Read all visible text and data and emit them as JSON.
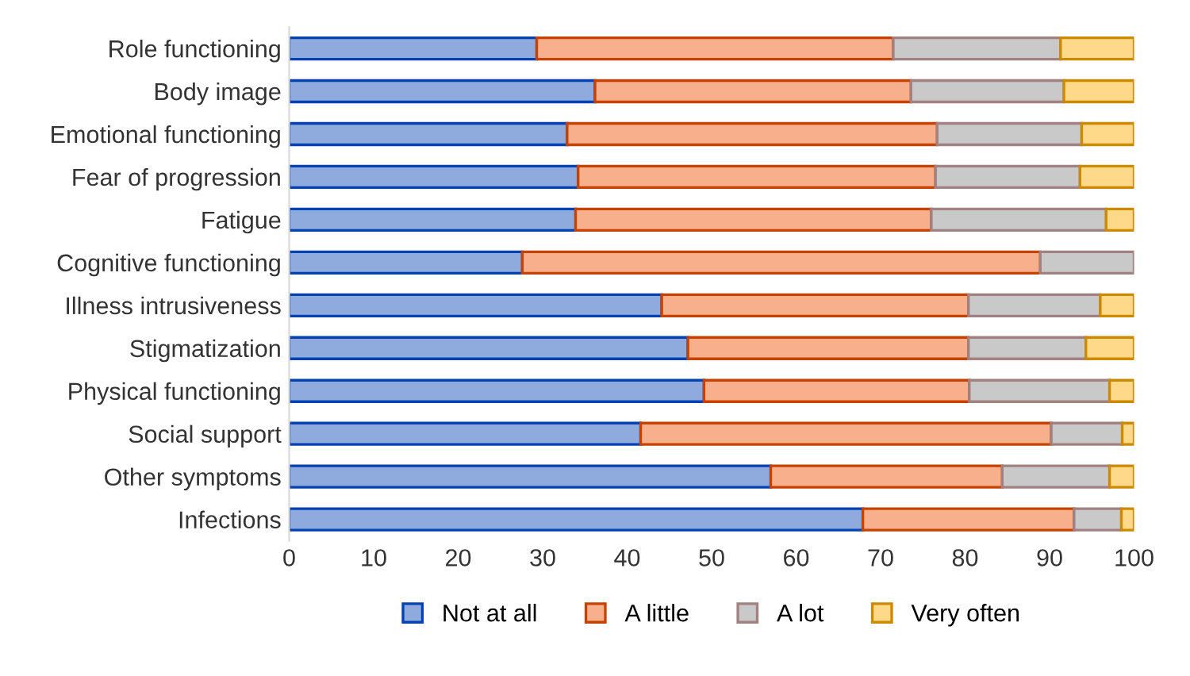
{
  "chart_data": {
    "type": "bar",
    "orientation": "horizontal",
    "stacked": true,
    "categories": [
      "Role functioning",
      "Body image",
      "Emotional functioning",
      "Fear of progression",
      "Fatigue",
      "Cognitive functioning",
      "Illness intrusiveness",
      "Stigmatization",
      "Physical functioning",
      "Social support",
      "Other symptoms",
      "Infections"
    ],
    "series": [
      {
        "name": "Not at all",
        "color": "#8faadc",
        "values": [
          29.3,
          36.2,
          32.9,
          34.2,
          33.9,
          27.6,
          44.1,
          47.2,
          49.1,
          41.6,
          57.0,
          67.9
        ]
      },
      {
        "name": "A little",
        "color": "#f8b08c",
        "values": [
          42.2,
          37.4,
          43.8,
          42.3,
          42.1,
          61.3,
          36.3,
          33.2,
          31.4,
          48.6,
          27.4,
          25.0
        ]
      },
      {
        "name": "A lot",
        "color": "#c9c9c9",
        "values": [
          19.8,
          18.1,
          17.1,
          17.1,
          20.7,
          11.1,
          15.6,
          13.9,
          16.6,
          8.4,
          12.7,
          5.6
        ]
      },
      {
        "name": "Very often",
        "color": "#ffd98a",
        "values": [
          8.7,
          8.3,
          6.2,
          6.4,
          3.3,
          null,
          4.0,
          5.7,
          2.9,
          1.4,
          2.9,
          1.5
        ]
      }
    ],
    "xlim": [
      0,
      100
    ],
    "xticks": [
      0,
      10,
      20,
      30,
      40,
      50,
      60,
      70,
      80,
      90,
      100
    ],
    "grid": false,
    "legend": "bottom"
  }
}
